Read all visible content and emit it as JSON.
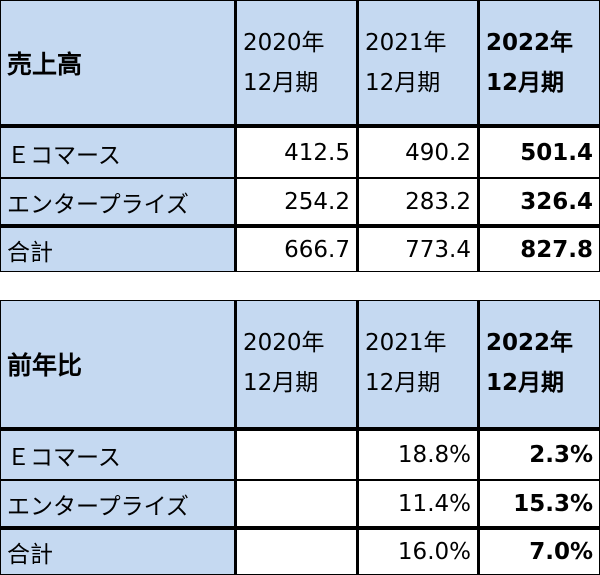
{
  "tables": [
    {
      "title": "売上高",
      "columns": [
        [
          "2020年",
          "12月期"
        ],
        [
          "2021年",
          "12月期"
        ],
        [
          "2022年",
          "12月期"
        ]
      ],
      "rows": [
        {
          "label": "Ｅコマース",
          "cells": [
            "412.5",
            "490.2",
            "501.4"
          ]
        },
        {
          "label": "エンタープライズ",
          "cells": [
            "254.2",
            "283.2",
            "326.4"
          ]
        },
        {
          "label": "合計",
          "cells": [
            "666.7",
            "773.4",
            "827.8"
          ]
        }
      ]
    },
    {
      "title": "前年比",
      "columns": [
        [
          "2020年",
          "12月期"
        ],
        [
          "2021年",
          "12月期"
        ],
        [
          "2022年",
          "12月期"
        ]
      ],
      "rows": [
        {
          "label": "Ｅコマース",
          "cells": [
            null,
            "18.8%",
            "2.3%"
          ]
        },
        {
          "label": "エンタープライズ",
          "cells": [
            null,
            "11.4%",
            "15.3%"
          ]
        },
        {
          "label": "合計",
          "cells": [
            null,
            "16.0%",
            "7.0%"
          ]
        }
      ]
    }
  ]
}
